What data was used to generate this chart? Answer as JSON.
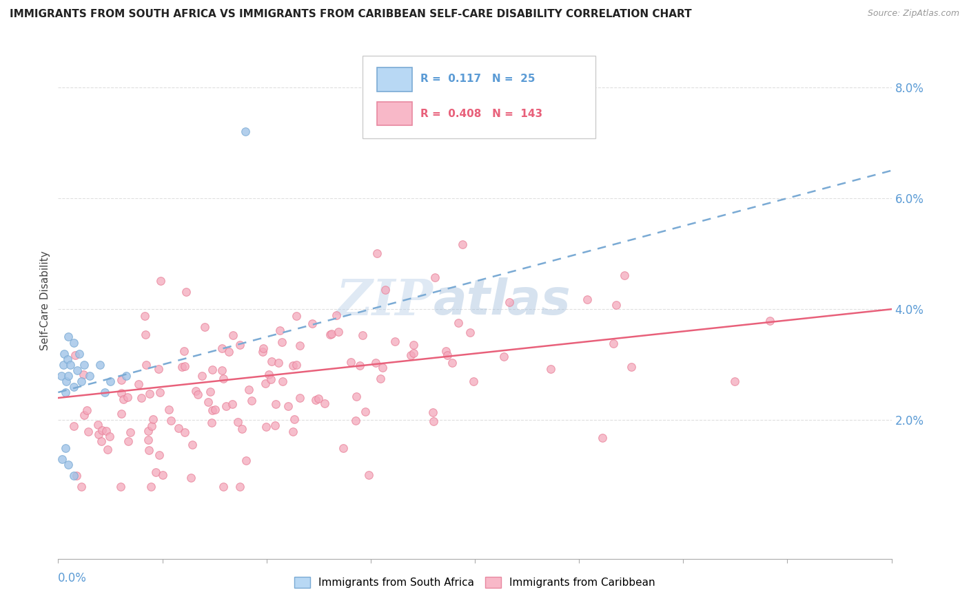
{
  "title": "IMMIGRANTS FROM SOUTH AFRICA VS IMMIGRANTS FROM CARIBBEAN SELF-CARE DISABILITY CORRELATION CHART",
  "source": "Source: ZipAtlas.com",
  "ylabel": "Self-Care Disability",
  "ytick_labels": [
    "2.0%",
    "4.0%",
    "6.0%",
    "8.0%"
  ],
  "ytick_values": [
    0.02,
    0.04,
    0.06,
    0.08
  ],
  "xlim": [
    0.0,
    0.8
  ],
  "ylim": [
    -0.005,
    0.088
  ],
  "legend_text_blue": "R =  0.117   N =  25",
  "legend_text_pink": "R =  0.408   N =  143",
  "legend_label_blue": "Immigrants from South Africa",
  "legend_label_pink": "Immigrants from Caribbean",
  "watermark_zip": "ZIP",
  "watermark_atlas": "atlas",
  "blue_scatter_color": "#a0c4e8",
  "blue_scatter_edge": "#7aaad4",
  "pink_scatter_color": "#f4a8bc",
  "pink_scatter_edge": "#e88098",
  "blue_line_color": "#7aaad4",
  "pink_line_color": "#e8607a",
  "ytick_color": "#5b9bd5",
  "xtick_color": "#5b9bd5",
  "grid_color": "#d8d8d8",
  "blue_trendline_x": [
    0.0,
    0.8
  ],
  "blue_trendline_y": [
    0.025,
    0.065
  ],
  "pink_trendline_x": [
    0.0,
    0.8
  ],
  "pink_trendline_y": [
    0.024,
    0.04
  ]
}
